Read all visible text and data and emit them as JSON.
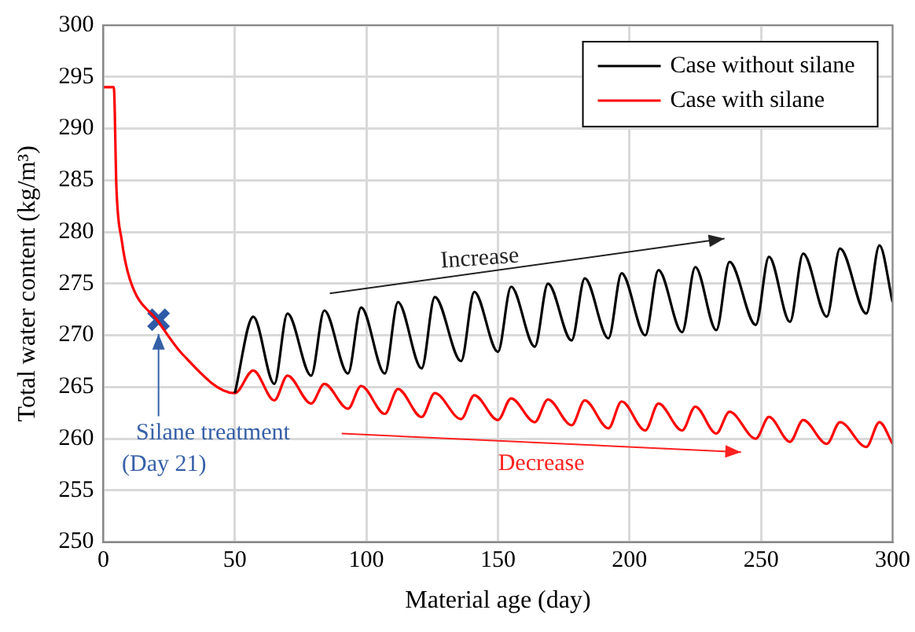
{
  "chart_data": {
    "type": "line",
    "xlabel": "Material age (day)",
    "ylabel": "Total water content (kg/m³)",
    "xlim": [
      0,
      300
    ],
    "xticks": [
      0,
      50,
      100,
      150,
      200,
      250,
      300
    ],
    "ylim": [
      250,
      300
    ],
    "yticks": [
      250,
      255,
      260,
      265,
      270,
      275,
      280,
      285,
      290,
      295,
      300
    ],
    "grid": true,
    "legend": "top right",
    "marker": "none",
    "line_style": "solid",
    "series": [
      {
        "name": "Case without silane",
        "color": "#000000",
        "x": [
          50,
          57,
          65,
          70,
          79,
          84,
          93,
          98,
          107,
          112,
          121,
          126,
          136,
          141,
          150,
          155,
          164,
          169,
          178,
          183,
          192,
          197,
          206,
          211,
          220,
          225,
          233,
          238,
          248,
          253,
          261,
          266,
          275,
          280,
          290,
          295,
          300
        ],
        "values": [
          264.4,
          271.8,
          265.3,
          272.1,
          266.1,
          272.4,
          266.3,
          272.7,
          266.3,
          273.2,
          266.8,
          273.7,
          267.5,
          274.2,
          268.4,
          274.7,
          268.9,
          275.0,
          269.5,
          275.5,
          269.7,
          276.0,
          270.0,
          276.3,
          270.3,
          276.6,
          270.5,
          277.1,
          271.0,
          277.6,
          271.3,
          277.9,
          271.8,
          278.4,
          272.1,
          278.7,
          273.2
        ]
      },
      {
        "name": "Case with silane",
        "color": "#ff0000",
        "x": [
          0,
          4,
          5,
          7,
          10,
          21,
          30,
          50,
          57,
          65,
          70,
          79,
          84,
          93,
          98,
          107,
          112,
          121,
          126,
          136,
          141,
          150,
          155,
          164,
          169,
          178,
          183,
          192,
          197,
          206,
          211,
          220,
          225,
          233,
          238,
          248,
          253,
          261,
          266,
          275,
          280,
          290,
          295,
          300
        ],
        "values": [
          294,
          294,
          284.2,
          279.2,
          275.5,
          271.3,
          268.2,
          264.4,
          266.6,
          263.7,
          266.1,
          263.4,
          265.3,
          262.9,
          265.1,
          262.4,
          264.8,
          262.1,
          264.4,
          261.9,
          264.2,
          261.8,
          263.9,
          261.6,
          263.8,
          261.3,
          263.7,
          261.0,
          263.6,
          260.8,
          263.4,
          260.8,
          263.1,
          260.5,
          262.6,
          260.0,
          262.1,
          259.7,
          261.8,
          259.5,
          261.6,
          259.2,
          261.6,
          259.5
        ]
      },
      {
        "type": "scatter",
        "marker": "cross",
        "color": "#2e5aa8",
        "x": [
          21
        ],
        "values": [
          271.5
        ]
      }
    ],
    "annotations": [
      "Increase",
      "Decrease",
      {
        "text": "Silane treatment\n(Day 21)",
        "x": 21,
        "y": 271.5
      }
    ]
  }
}
